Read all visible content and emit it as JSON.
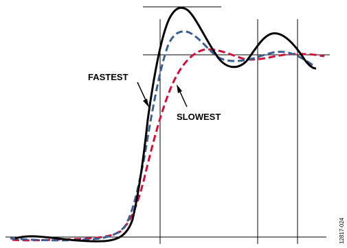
{
  "labels": {
    "fastest": "FASTEST",
    "slowest": "SLOWEST",
    "figure_id": "12817-024"
  },
  "colors": {
    "fastest": "#000000",
    "middle": "#3a5f93",
    "slowest": "#d0103a",
    "gridline": "#000000"
  }
}
